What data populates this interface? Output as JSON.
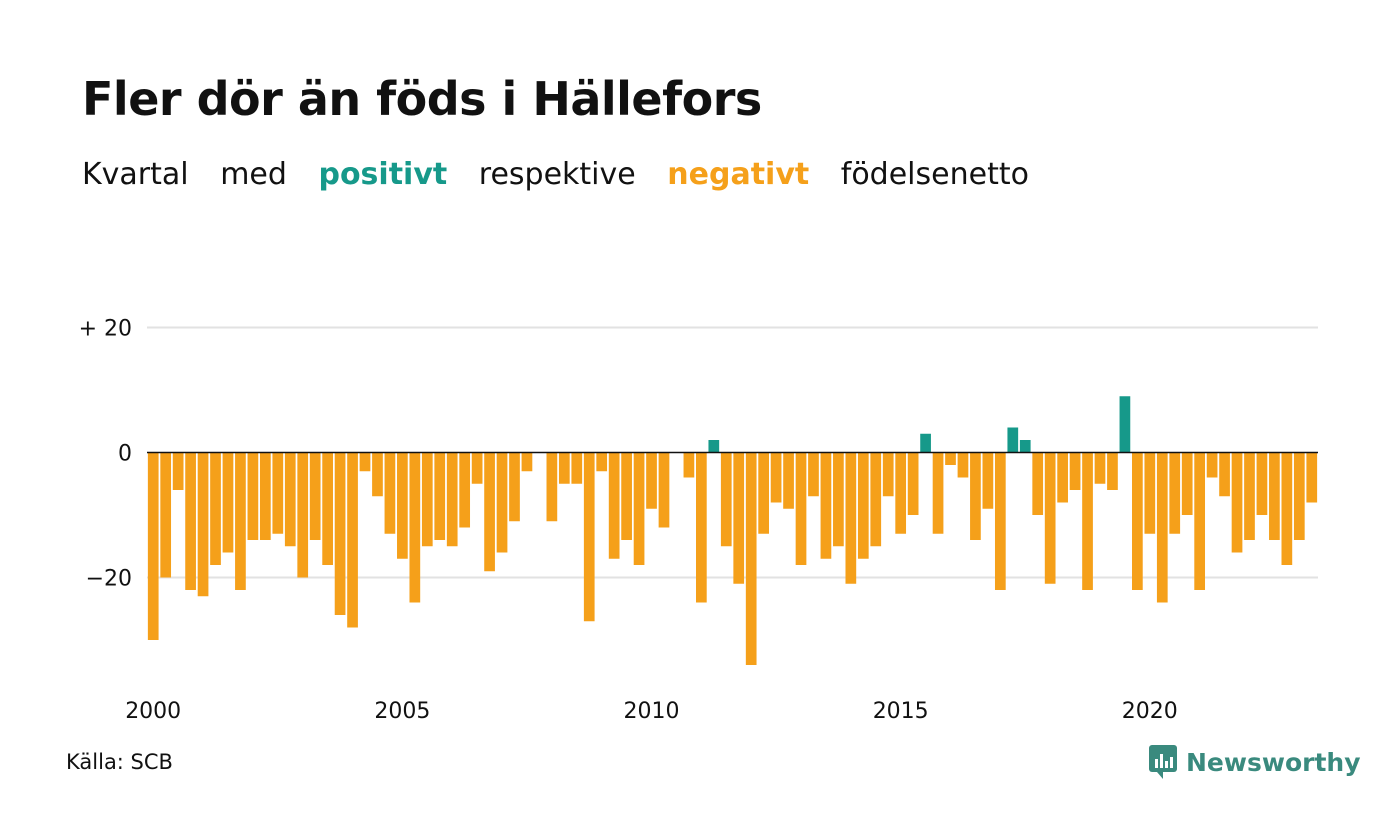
{
  "chart_data": {
    "type": "bar",
    "title": "Fler dör än föds i Hällefors",
    "subtitle": [
      "Kvartal",
      "med",
      "positivt",
      "respektive",
      "negativt",
      "födelsenetto"
    ],
    "x_start_year": 2000,
    "x_ticks": [
      "2000",
      "2005",
      "2010",
      "2015",
      "2020"
    ],
    "y_ticks": [
      {
        "value": 20,
        "label": "+ 20"
      },
      {
        "value": 0,
        "label": "0"
      },
      {
        "value": -20,
        "label": "−20"
      }
    ],
    "ylim": [
      -36,
      30
    ],
    "grid": true,
    "colors": {
      "positive": "#16998a",
      "negative": "#f5a01a",
      "grid": "#e2e2e2"
    },
    "values": [
      -30,
      -20,
      -6,
      -22,
      -23,
      -18,
      -16,
      -22,
      -14,
      -14,
      -13,
      -15,
      -20,
      -14,
      -18,
      -26,
      -28,
      -3,
      -7,
      -13,
      -17,
      -24,
      -15,
      -14,
      -15,
      -12,
      -5,
      -19,
      -16,
      -11,
      -3,
      0,
      -11,
      -5,
      -5,
      -27,
      -3,
      -17,
      -14,
      -18,
      -9,
      -12,
      0,
      -4,
      -24,
      2,
      -15,
      -21,
      -34,
      -13,
      -8,
      -9,
      -18,
      -7,
      -17,
      -15,
      -21,
      -17,
      -15,
      -7,
      -13,
      -10,
      3,
      -13,
      -2,
      -4,
      -14,
      -9,
      -22,
      4,
      2,
      -10,
      -21,
      -8,
      -6,
      -22,
      -5,
      -6,
      9,
      -22,
      -13,
      -24,
      -13,
      -10,
      -22,
      -4,
      -7,
      -16,
      -14,
      -10,
      -14,
      -18,
      -14,
      -8
    ]
  },
  "footer": {
    "source": "Källa: SCB",
    "logo": "Newsworthy",
    "logo_icon": "newsworthy-chart-icon"
  }
}
